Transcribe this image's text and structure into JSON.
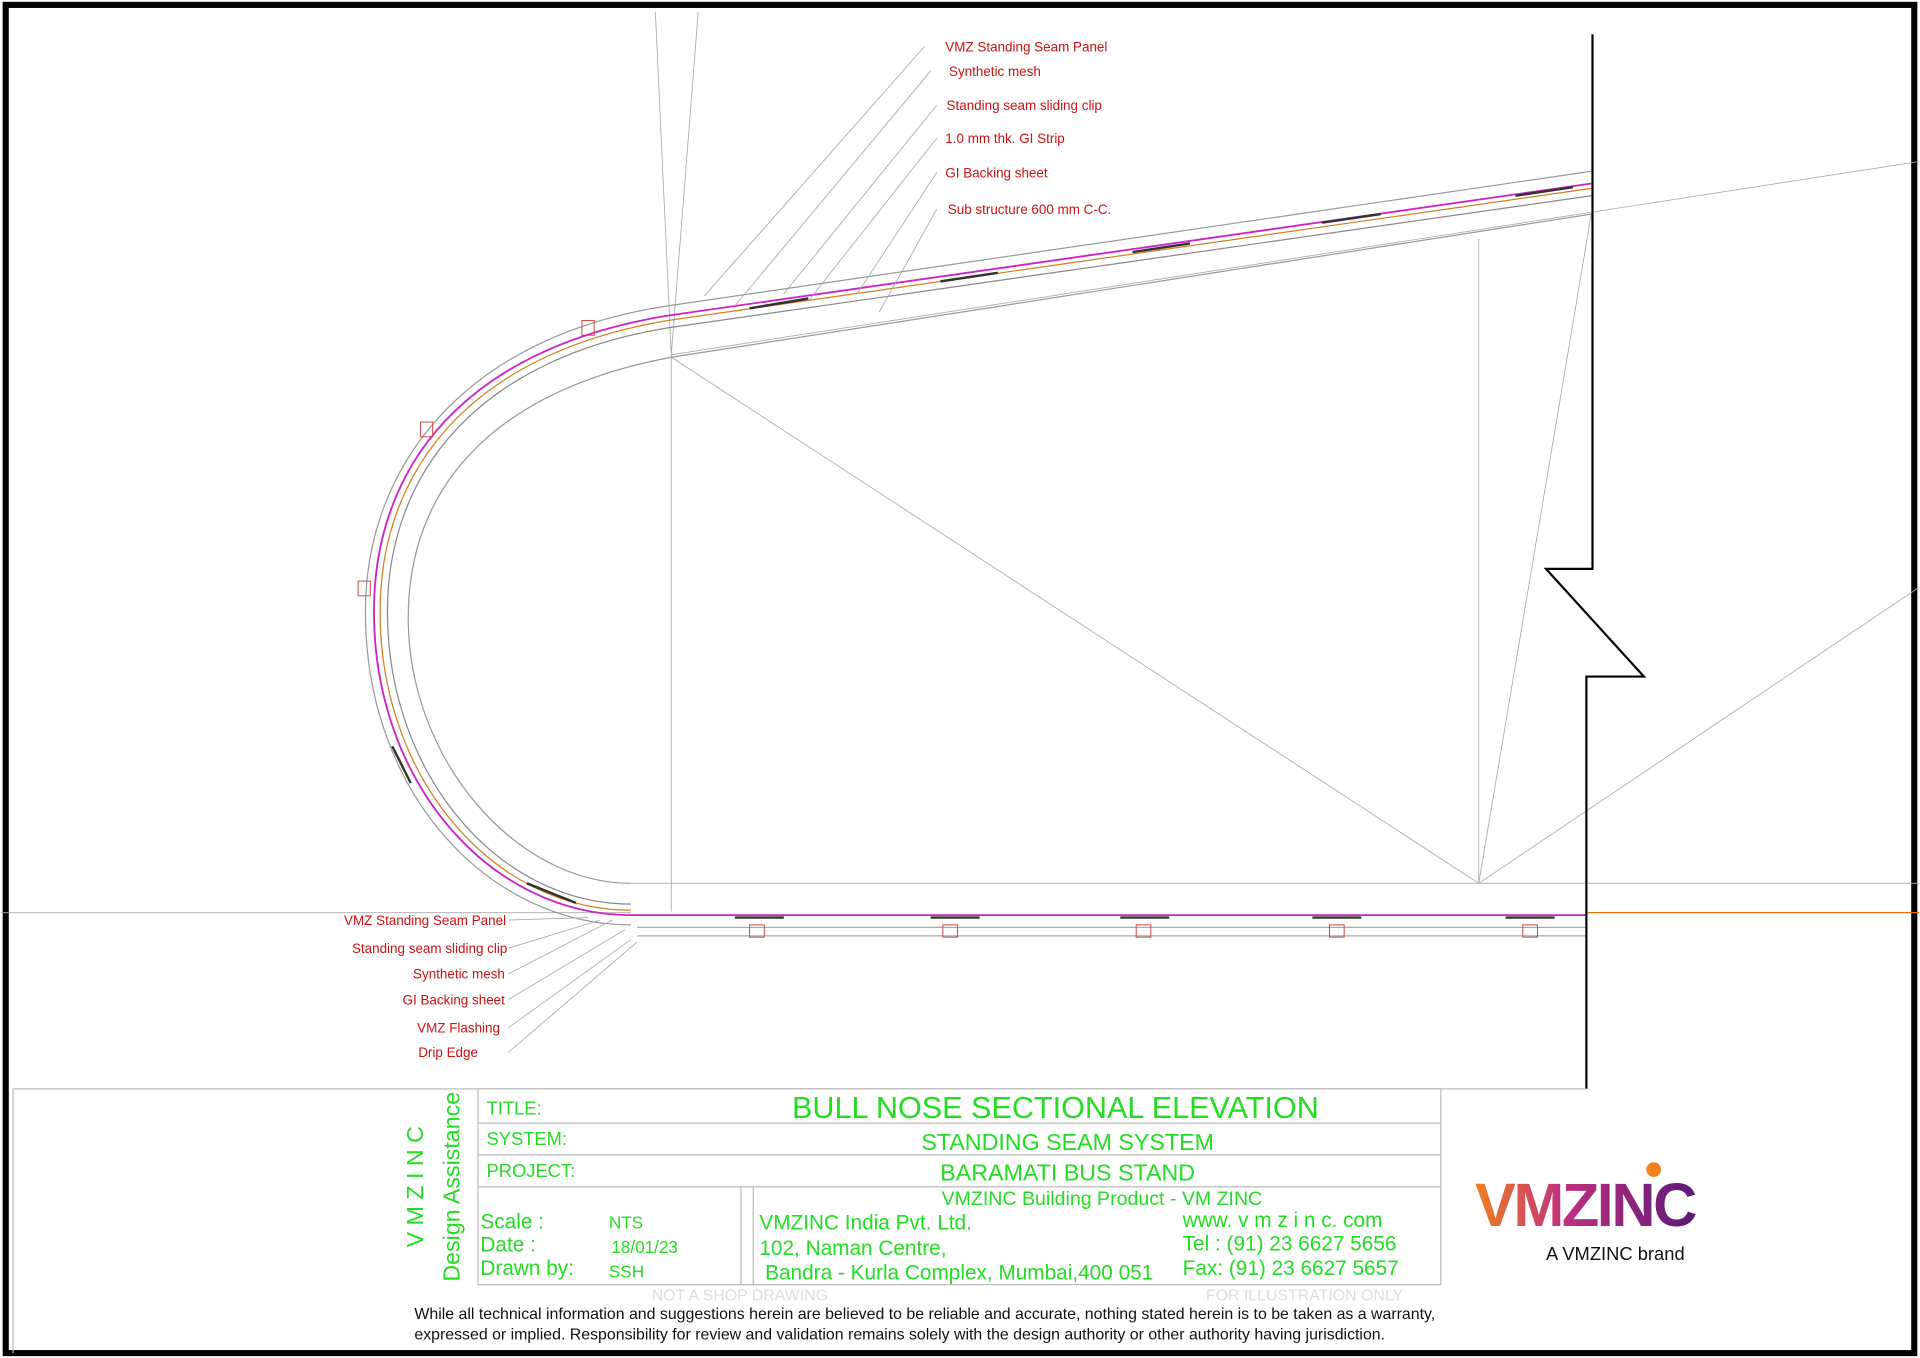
{
  "callouts_top": [
    "VMZ Standing Seam Panel",
    "Synthetic mesh",
    "Standing seam sliding clip",
    "1.0 mm thk. GI Strip",
    "GI Backing sheet",
    "Sub structure 600 mm C-C."
  ],
  "callouts_bottom": [
    "VMZ Standing Seam Panel",
    "Standing seam sliding clip",
    "Synthetic mesh",
    "GI Backing sheet",
    "VMZ Flashing",
    "Drip Edge"
  ],
  "title_block": {
    "side": [
      "V M Z I N C",
      "Design Assistance"
    ],
    "title_label": "TITLE:",
    "title": "BULL NOSE SECTIONAL ELEVATION",
    "system_label": "SYSTEM:",
    "system": "STANDING SEAM SYSTEM",
    "project_label": "PROJECT:",
    "project": "BARAMATI BUS STAND",
    "company_header": "VMZINC Building Product - VM ZINC",
    "scale_label": "Scale :",
    "scale": "NTS",
    "date_label": "Date :",
    "date": "18/01/23",
    "drawn_label": "Drawn by:",
    "drawn": "SSH",
    "address": [
      "VMZINC India Pvt. Ltd.",
      "102, Naman Centre,",
      " Bandra - Kurla Complex, Mumbai,400 051"
    ],
    "contact": [
      "www. v m z i n c. com",
      "Tel : (91) 23 6627 5656",
      "Fax: (91) 23 6627 5657"
    ],
    "watermarks": [
      "NOT A SHOP DRAWING",
      "FOR ILLUSTRATION ONLY"
    ]
  },
  "logo": {
    "name": "VMZINC",
    "tagline": "A VMZINC brand"
  },
  "disclaimer": [
    "While all technical information and suggestions herein are believed to be reliable and accurate, nothing stated herein is to be taken as a warranty,",
    "expressed or implied. Responsibility for review and validation remains solely with the design authority or other authority having jurisdiction."
  ]
}
